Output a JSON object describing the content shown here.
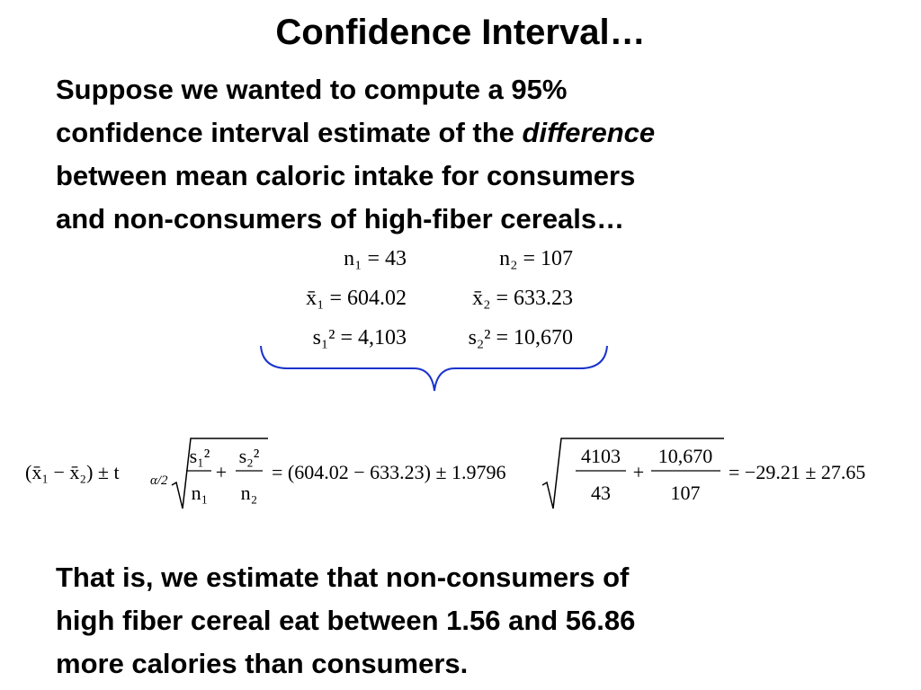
{
  "title": "Confidence Interval…",
  "intro": {
    "lines": [
      "Suppose we wanted to compute a 95%",
      "confidence interval estimate of the",
      "between mean caloric intake for consumers",
      "and non-consumers of high-fiber cereals…"
    ],
    "emphasis": "difference"
  },
  "statistics": {
    "rows": [
      [
        "n₁ = 43",
        "n₂ = 107"
      ],
      [
        "x̄₁ = 604.02",
        "x̄₂ = 633.23"
      ],
      [
        "s₁² = 4,103",
        "s₂² = 10,670"
      ]
    ]
  },
  "formula": {
    "lhs": "(x̄₁ − x̄₂) ± t",
    "lhs_subscript": "α/2",
    "fraction1": {
      "numerator": "s₁²",
      "denominator": "n₁"
    },
    "plus": "+",
    "fraction2": {
      "numerator": "s₂²",
      "denominator": "n₂"
    },
    "substitution": "= (604.02 − 633.23) ± 1.9796",
    "fraction3": {
      "numerator": "4103",
      "denominator": "43"
    },
    "fraction4": {
      "numerator": "10,670",
      "denominator": "107"
    },
    "result": "= −29.21 ± 27.65"
  },
  "conclusion": {
    "lines": [
      "That is, we estimate that non-consumers of",
      "high fiber cereal eat between 1.56 and 56.86",
      "more calories than consumers."
    ]
  }
}
